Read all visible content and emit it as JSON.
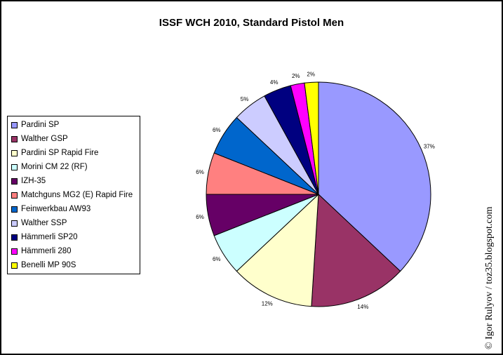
{
  "chart_data": {
    "type": "pie",
    "title": "ISSF WCH 2010, Standard Pistol Men",
    "series": [
      {
        "name": "Pardini SP",
        "value": 37,
        "label": "37%",
        "color": "#9999ff"
      },
      {
        "name": "Walther GSP",
        "value": 14,
        "label": "14%",
        "color": "#993366"
      },
      {
        "name": "Pardini SP Rapid Fire",
        "value": 12,
        "label": "12%",
        "color": "#ffffcc"
      },
      {
        "name": "Morini CM 22 (RF)",
        "value": 6,
        "label": "6%",
        "color": "#ccffff"
      },
      {
        "name": "IZH-35",
        "value": 6,
        "label": "6%",
        "color": "#660066"
      },
      {
        "name": "Matchguns MG2 (E) Rapid Fire",
        "value": 6,
        "label": "6%",
        "color": "#ff8080"
      },
      {
        "name": "Feinwerkbau AW93",
        "value": 6,
        "label": "6%",
        "color": "#0066cc"
      },
      {
        "name": "Walther SSP",
        "value": 5,
        "label": "5%",
        "color": "#ccccff"
      },
      {
        "name": "Hämmerli SP20",
        "value": 4,
        "label": "4%",
        "color": "#000080"
      },
      {
        "name": "Hämmerli 280",
        "value": 2,
        "label": "2%",
        "color": "#ff00ff"
      },
      {
        "name": "Benelli MP 90S",
        "value": 2,
        "label": "2%",
        "color": "#ffff00"
      }
    ],
    "legend_position": "left"
  },
  "credit": "© Igor Rulyov / toz35.blogspot.com"
}
